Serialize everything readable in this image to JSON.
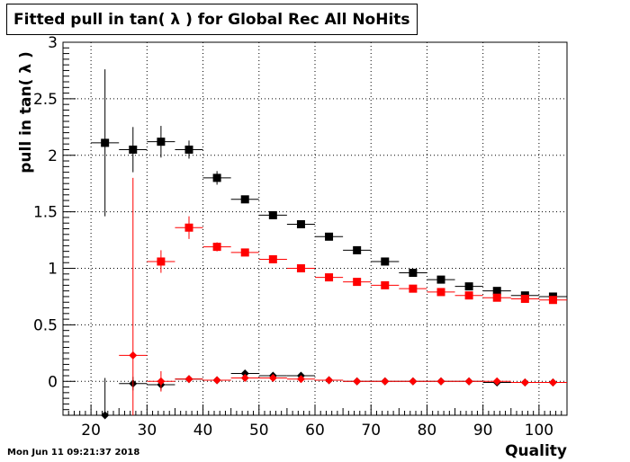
{
  "chart_data": {
    "type": "scatter",
    "title": "Fitted pull in tan( λ ) for Global Rec All NoHits",
    "xlabel": "Quality",
    "ylabel": "pull in tan( λ )",
    "xlim": [
      15,
      105
    ],
    "ylim": [
      -0.3,
      3.0
    ],
    "xticks": [
      20,
      30,
      40,
      50,
      60,
      70,
      80,
      90,
      100
    ],
    "yticks": [
      0,
      0.5,
      1,
      1.5,
      2,
      2.5,
      3
    ],
    "ytick_labels": [
      "0",
      "0.5",
      "1",
      "1.5",
      "2",
      "2.5",
      "3"
    ],
    "grid": true,
    "bin_half_width": 2.5,
    "series": [
      {
        "marker": "square",
        "color": "#000000",
        "points": [
          {
            "x": 22.5,
            "y": 2.11,
            "err": 0.65
          },
          {
            "x": 27.5,
            "y": 2.05,
            "err": 0.2
          },
          {
            "x": 32.5,
            "y": 2.12,
            "err": 0.14
          },
          {
            "x": 37.5,
            "y": 2.05,
            "err": 0.08
          },
          {
            "x": 42.5,
            "y": 1.8,
            "err": 0.06
          },
          {
            "x": 47.5,
            "y": 1.61,
            "err": 0.03
          },
          {
            "x": 52.5,
            "y": 1.47,
            "err": 0.02
          },
          {
            "x": 57.5,
            "y": 1.39,
            "err": 0.02
          },
          {
            "x": 62.5,
            "y": 1.28,
            "err": 0.02
          },
          {
            "x": 67.5,
            "y": 1.16,
            "err": 0.02
          },
          {
            "x": 72.5,
            "y": 1.06,
            "err": 0.01
          },
          {
            "x": 77.5,
            "y": 0.96,
            "err": 0.01
          },
          {
            "x": 82.5,
            "y": 0.9,
            "err": 0.01
          },
          {
            "x": 87.5,
            "y": 0.84,
            "err": 0.01
          },
          {
            "x": 92.5,
            "y": 0.8,
            "err": 0.01
          },
          {
            "x": 97.5,
            "y": 0.76,
            "err": 0.01
          },
          {
            "x": 102.5,
            "y": 0.75,
            "err": 0.01
          }
        ]
      },
      {
        "marker": "square",
        "color": "#ff0000",
        "points": [
          {
            "x": 32.5,
            "y": 1.06,
            "err": 0.1
          },
          {
            "x": 37.5,
            "y": 1.36,
            "err": 0.1
          },
          {
            "x": 42.5,
            "y": 1.19,
            "err": 0.04
          },
          {
            "x": 47.5,
            "y": 1.14,
            "err": 0.02
          },
          {
            "x": 52.5,
            "y": 1.08,
            "err": 0.02
          },
          {
            "x": 57.5,
            "y": 1.0,
            "err": 0.01
          },
          {
            "x": 62.5,
            "y": 0.92,
            "err": 0.01
          },
          {
            "x": 67.5,
            "y": 0.88,
            "err": 0.01
          },
          {
            "x": 72.5,
            "y": 0.85,
            "err": 0.01
          },
          {
            "x": 77.5,
            "y": 0.82,
            "err": 0.01
          },
          {
            "x": 82.5,
            "y": 0.79,
            "err": 0.01
          },
          {
            "x": 87.5,
            "y": 0.76,
            "err": 0.01
          },
          {
            "x": 92.5,
            "y": 0.74,
            "err": 0.01
          },
          {
            "x": 97.5,
            "y": 0.73,
            "err": 0.01
          },
          {
            "x": 102.5,
            "y": 0.72,
            "err": 0.01
          }
        ]
      },
      {
        "marker": "diamond",
        "color": "#000000",
        "points": [
          {
            "x": 22.5,
            "y": -0.3,
            "err": 0.33
          },
          {
            "x": 27.5,
            "y": -0.02,
            "err": 0.06
          },
          {
            "x": 32.5,
            "y": -0.03,
            "err": 0.05
          },
          {
            "x": 37.5,
            "y": 0.02,
            "err": 0.03
          },
          {
            "x": 42.5,
            "y": 0.01,
            "err": 0.02
          },
          {
            "x": 47.5,
            "y": 0.07,
            "err": 0.02
          },
          {
            "x": 52.5,
            "y": 0.05,
            "err": 0.01
          },
          {
            "x": 57.5,
            "y": 0.05,
            "err": 0.01
          },
          {
            "x": 62.5,
            "y": 0.01,
            "err": 0.01
          },
          {
            "x": 67.5,
            "y": 0.0,
            "err": 0.01
          },
          {
            "x": 72.5,
            "y": 0.0,
            "err": 0.01
          },
          {
            "x": 77.5,
            "y": 0.0,
            "err": 0.005
          },
          {
            "x": 82.5,
            "y": 0.0,
            "err": 0.005
          },
          {
            "x": 87.5,
            "y": 0.0,
            "err": 0.005
          },
          {
            "x": 92.5,
            "y": -0.01,
            "err": 0.005
          },
          {
            "x": 97.5,
            "y": -0.01,
            "err": 0.005
          },
          {
            "x": 102.5,
            "y": -0.01,
            "err": 0.005
          }
        ]
      },
      {
        "marker": "diamond",
        "color": "#ff0000",
        "points": [
          {
            "x": 27.5,
            "y": 0.23,
            "err": 1.57
          },
          {
            "x": 32.5,
            "y": 0.0,
            "err": 0.09
          },
          {
            "x": 37.5,
            "y": 0.02,
            "err": 0.03
          },
          {
            "x": 42.5,
            "y": 0.01,
            "err": 0.02
          },
          {
            "x": 47.5,
            "y": 0.03,
            "err": 0.02
          },
          {
            "x": 52.5,
            "y": 0.03,
            "err": 0.01
          },
          {
            "x": 57.5,
            "y": 0.02,
            "err": 0.01
          },
          {
            "x": 62.5,
            "y": 0.01,
            "err": 0.01
          },
          {
            "x": 67.5,
            "y": 0.0,
            "err": 0.01
          },
          {
            "x": 72.5,
            "y": 0.0,
            "err": 0.01
          },
          {
            "x": 77.5,
            "y": 0.0,
            "err": 0.005
          },
          {
            "x": 82.5,
            "y": 0.0,
            "err": 0.005
          },
          {
            "x": 87.5,
            "y": 0.0,
            "err": 0.005
          },
          {
            "x": 92.5,
            "y": 0.0,
            "err": 0.005
          },
          {
            "x": 97.5,
            "y": -0.01,
            "err": 0.005
          },
          {
            "x": 102.5,
            "y": -0.01,
            "err": 0.005
          }
        ]
      }
    ]
  },
  "footer": {
    "datestamp": "Mon Jun 11 09:21:37 2018"
  }
}
